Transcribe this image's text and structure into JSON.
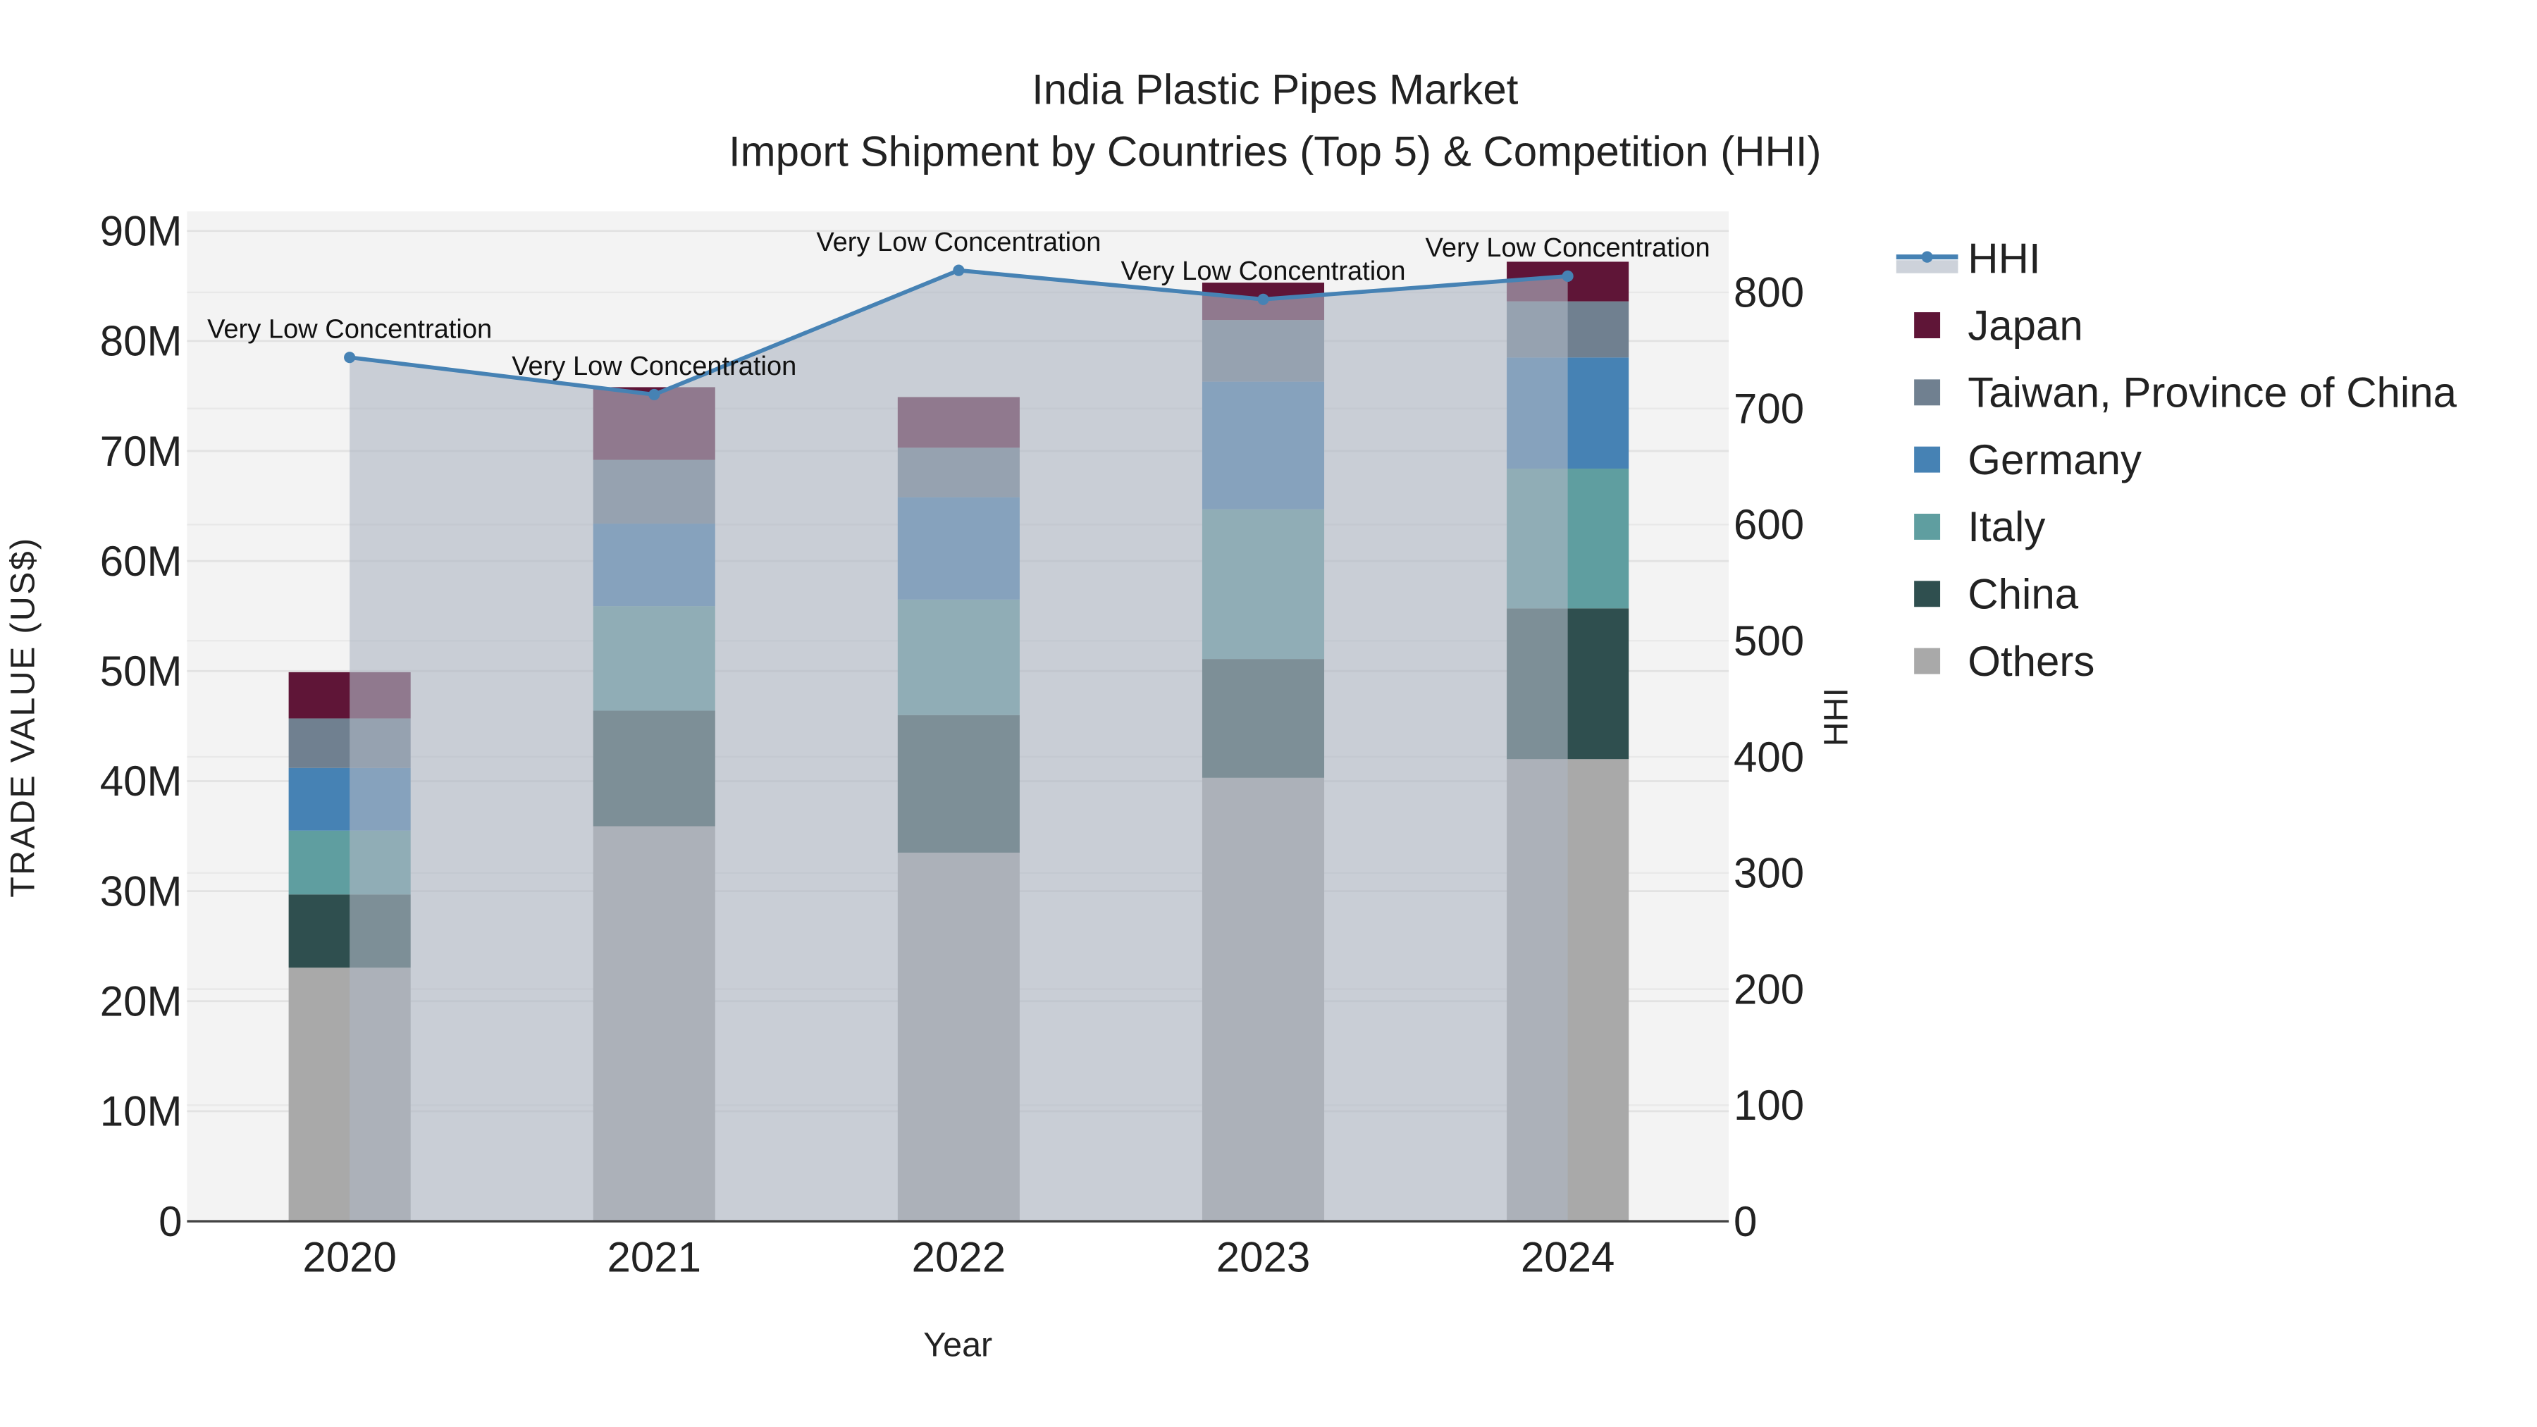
{
  "chart_data": {
    "type": "bar",
    "title": "India Plastic Pipes Market",
    "subtitle": "Import Shipment by Countries (Top 5) & Competition (HHI)",
    "xlabel": "Year",
    "ylabel": "TRADE VALUE (US$)",
    "y2label": "HHI",
    "categories": [
      "2020",
      "2021",
      "2022",
      "2023",
      "2024"
    ],
    "ylim": [
      0,
      90000000
    ],
    "y2lim": [
      0,
      870
    ],
    "yticks": [
      0,
      10000000,
      20000000,
      30000000,
      40000000,
      50000000,
      60000000,
      70000000,
      80000000,
      90000000
    ],
    "ytick_labels": [
      "0",
      "10M",
      "20M",
      "30M",
      "40M",
      "50M",
      "60M",
      "70M",
      "80M",
      "90M"
    ],
    "y2ticks": [
      0,
      100,
      200,
      300,
      400,
      500,
      600,
      700,
      800
    ],
    "y2tick_labels": [
      "0",
      "100",
      "200",
      "300",
      "400",
      "500",
      "600",
      "700",
      "800"
    ],
    "grid": true,
    "legend_position": "right",
    "stack_order": [
      "Others",
      "China",
      "Italy",
      "Germany",
      "Taiwan, Province of China",
      "Japan"
    ],
    "series": [
      {
        "name": "Japan",
        "color": "#5f1537",
        "values": [
          4200000,
          6600000,
          4600000,
          3400000,
          3600000
        ]
      },
      {
        "name": "Taiwan, Province of China",
        "color": "#708090",
        "values": [
          4500000,
          5800000,
          4500000,
          5600000,
          5100000
        ]
      },
      {
        "name": "Germany",
        "color": "#4682b4",
        "values": [
          5700000,
          7500000,
          9300000,
          11600000,
          10100000
        ]
      },
      {
        "name": "Italy",
        "color": "#5f9ea0",
        "values": [
          5800000,
          9500000,
          10500000,
          13600000,
          12700000
        ]
      },
      {
        "name": "China",
        "color": "#2f4f4f",
        "values": [
          6650000,
          10500000,
          12500000,
          10800000,
          13700000
        ]
      },
      {
        "name": "Others",
        "color": "#a9a9a9",
        "values": [
          23050000,
          35900000,
          33500000,
          40300000,
          42000000
        ]
      }
    ],
    "line_series": {
      "name": "HHI",
      "color": "#4682b4",
      "axis": "right",
      "values": [
        744,
        712,
        819,
        794,
        814
      ]
    },
    "annotations": [
      "Very Low Concentration",
      "Very Low Concentration",
      "Very Low Concentration",
      "Very Low Concentration",
      "Very Low Concentration"
    ]
  }
}
